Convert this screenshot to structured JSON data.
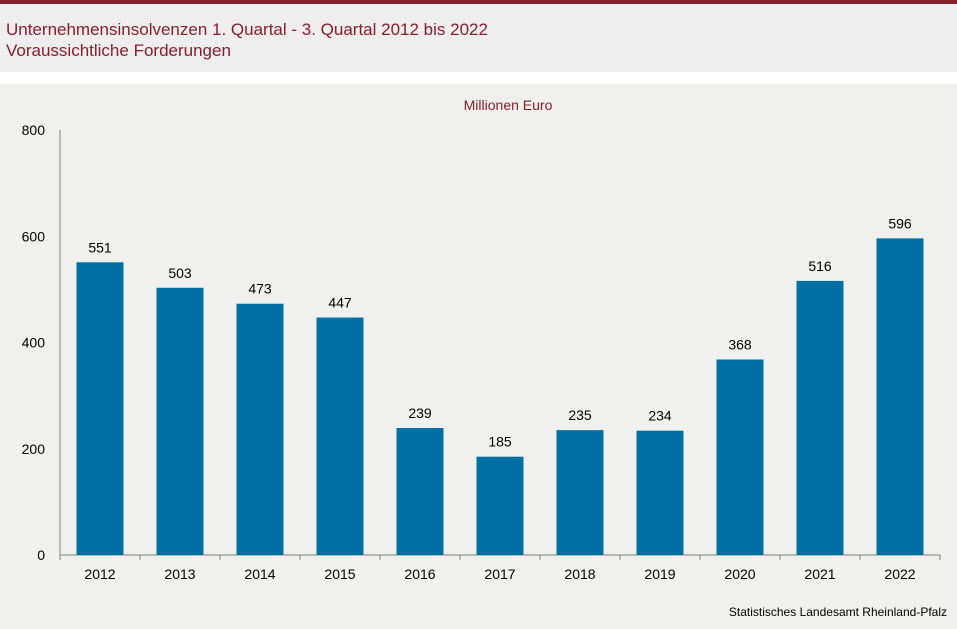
{
  "header": {
    "title_line_1": "Unternehmensinsolvenzen 1. Quartal - 3. Quartal 2012 bis 2022",
    "title_line_2": "Voraussichtliche Forderungen"
  },
  "source": "Statistisches Landesamt Rheinland-Pfalz",
  "colors": {
    "accent": "#8b1c2c",
    "bar": "#0070a4"
  },
  "chart_data": {
    "type": "bar",
    "title": "Unternehmensinsolvenzen 1. Quartal - 3. Quartal 2012 bis 2022",
    "subtitle": "Voraussichtliche Forderungen",
    "unit_label": "Millionen Euro",
    "categories": [
      "2012",
      "2013",
      "2014",
      "2015",
      "2016",
      "2017",
      "2018",
      "2019",
      "2020",
      "2021",
      "2022"
    ],
    "values": [
      551,
      503,
      473,
      447,
      239,
      185,
      235,
      234,
      368,
      516,
      596
    ],
    "ylim": [
      0,
      800
    ],
    "yticks": [
      "0",
      "200",
      "400",
      "600",
      "800"
    ],
    "grid": false,
    "data_labels": true
  }
}
